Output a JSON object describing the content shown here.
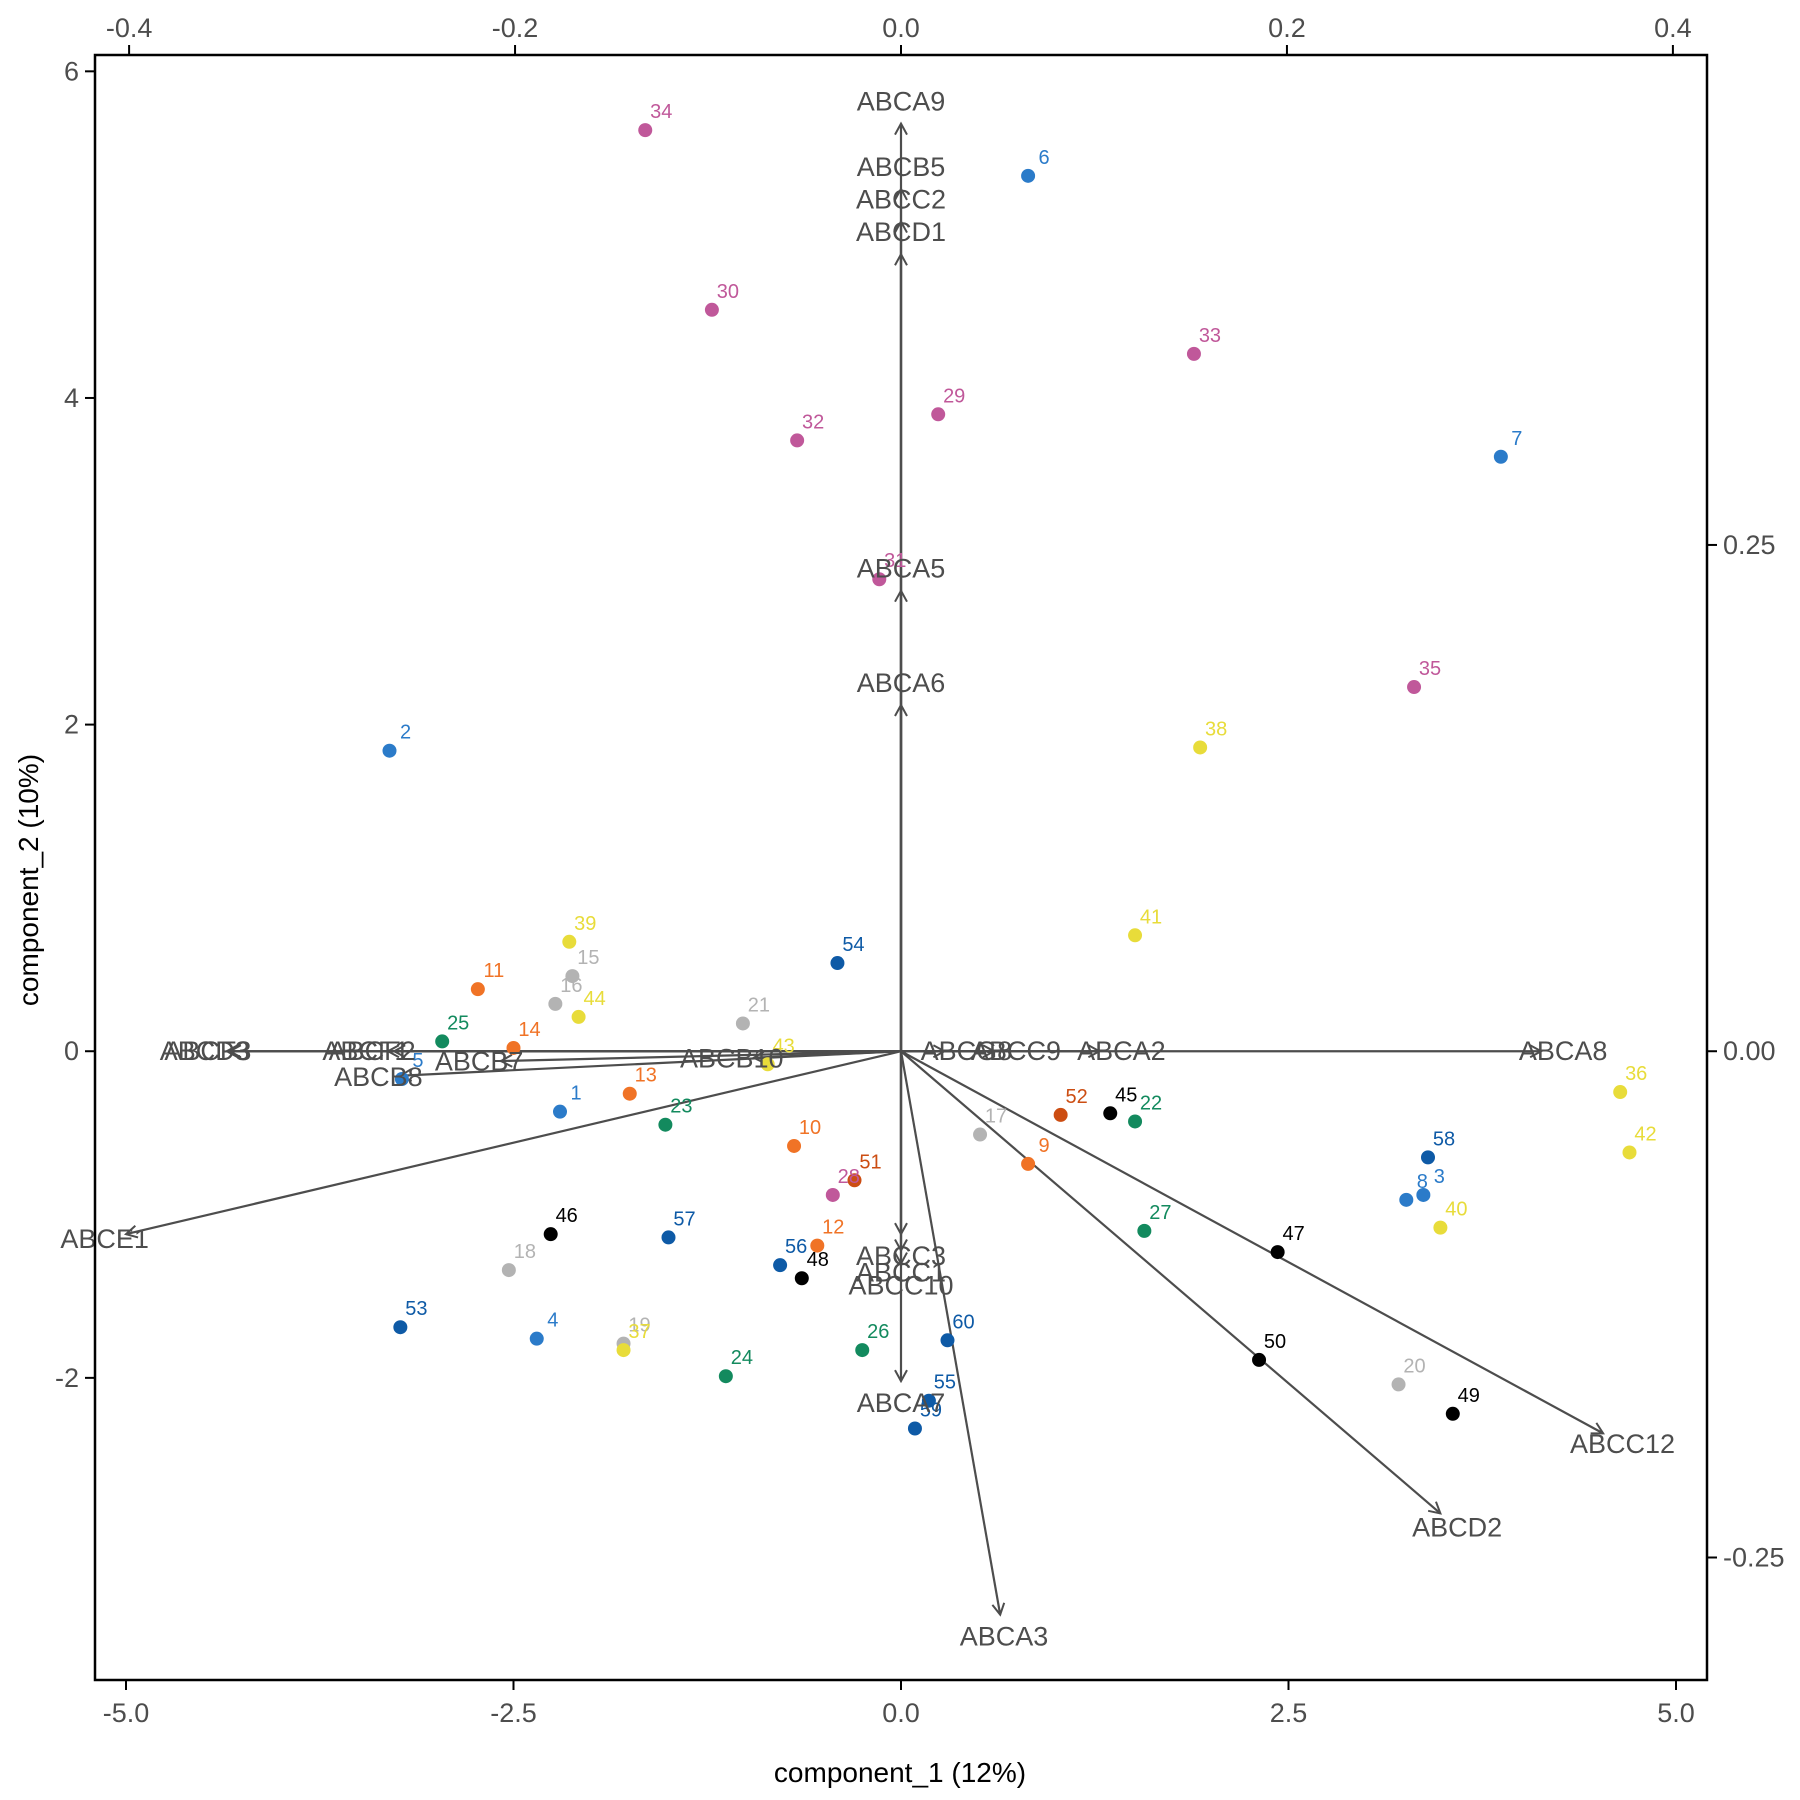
{
  "chart_data": {
    "type": "scatter",
    "subtype": "biplot",
    "xlabel": "component_1   (12%)",
    "ylabel": "component_2   (10%)",
    "xlim": [
      -5.2,
      5.2
    ],
    "ylim": [
      -3.85,
      6.1
    ],
    "x_ticks": [
      -5.0,
      -2.5,
      0.0,
      2.5,
      5.0
    ],
    "x_tick_labels": [
      "-5.0",
      "-2.5",
      "0.0",
      "2.5",
      "5.0"
    ],
    "y_ticks": [
      -2,
      0,
      2,
      4,
      6
    ],
    "y_tick_labels": [
      "-2",
      "0",
      "2",
      "4",
      "6"
    ],
    "top_ticks": [
      -0.4,
      -0.2,
      0.0,
      0.2,
      0.4
    ],
    "top_tick_labels": [
      "-0.4",
      "-0.2",
      "0.0",
      "0.2",
      "0.4"
    ],
    "right_ticks": [
      -0.25,
      0.0,
      0.25
    ],
    "right_tick_labels": [
      "-0.25",
      "0.00",
      "0.25"
    ],
    "grid": false,
    "legend": "none",
    "colors": {
      "axis": "#000000",
      "arrow": "#4d4d4d",
      "vector_label": "#4d4d4d",
      "blue": "#2b7bc9",
      "dark_blue": "#0e5aa6",
      "magenta": "#c0589a",
      "yellow": "#e8dc3a",
      "orange": "#f07326",
      "dark_orange": "#cc4d12",
      "green": "#138a5e",
      "gray": "#b3b3b3",
      "black": "#000000"
    },
    "points": [
      {
        "label": "1",
        "x": -2.2,
        "y": -0.37,
        "color": "#2b7bc9"
      },
      {
        "label": "2",
        "x": -3.3,
        "y": 1.84,
        "color": "#2b7bc9"
      },
      {
        "label": "3",
        "x": 3.37,
        "y": -0.88,
        "color": "#2b7bc9"
      },
      {
        "label": "4",
        "x": -2.35,
        "y": -1.76,
        "color": "#2b7bc9"
      },
      {
        "label": "5",
        "x": -3.22,
        "y": -0.17,
        "color": "#2b7bc9"
      },
      {
        "label": "6",
        "x": 0.82,
        "y": 5.36,
        "color": "#2b7bc9"
      },
      {
        "label": "7",
        "x": 3.87,
        "y": 3.64,
        "color": "#2b7bc9"
      },
      {
        "label": "8",
        "x": 3.26,
        "y": -0.91,
        "color": "#2b7bc9"
      },
      {
        "label": "9",
        "x": 0.82,
        "y": -0.69,
        "color": "#f07326"
      },
      {
        "label": "10",
        "x": -0.69,
        "y": -0.58,
        "color": "#f07326"
      },
      {
        "label": "11",
        "x": -2.73,
        "y": 0.38,
        "color": "#f07326"
      },
      {
        "label": "12",
        "x": -0.54,
        "y": -1.19,
        "color": "#f07326"
      },
      {
        "label": "13",
        "x": -1.75,
        "y": -0.26,
        "color": "#f07326"
      },
      {
        "label": "14",
        "x": -2.5,
        "y": 0.02,
        "color": "#f07326"
      },
      {
        "label": "15",
        "x": -2.12,
        "y": 0.46,
        "color": "#b3b3b3"
      },
      {
        "label": "16",
        "x": -2.23,
        "y": 0.29,
        "color": "#b3b3b3"
      },
      {
        "label": "17",
        "x": 0.51,
        "y": -0.51,
        "color": "#b3b3b3"
      },
      {
        "label": "18",
        "x": -2.53,
        "y": -1.34,
        "color": "#b3b3b3"
      },
      {
        "label": "19",
        "x": -1.79,
        "y": -1.79,
        "color": "#b3b3b3"
      },
      {
        "label": "20",
        "x": 3.21,
        "y": -2.04,
        "color": "#b3b3b3"
      },
      {
        "label": "21",
        "x": -1.02,
        "y": 0.17,
        "color": "#b3b3b3"
      },
      {
        "label": "22",
        "x": 1.51,
        "y": -0.43,
        "color": "#138a5e"
      },
      {
        "label": "23",
        "x": -1.52,
        "y": -0.45,
        "color": "#138a5e"
      },
      {
        "label": "24",
        "x": -1.13,
        "y": -1.99,
        "color": "#138a5e"
      },
      {
        "label": "25",
        "x": -2.96,
        "y": 0.06,
        "color": "#138a5e"
      },
      {
        "label": "26",
        "x": -0.25,
        "y": -1.83,
        "color": "#138a5e"
      },
      {
        "label": "27",
        "x": 1.57,
        "y": -1.1,
        "color": "#138a5e"
      },
      {
        "label": "28",
        "x": -0.44,
        "y": -0.88,
        "color": "#c0589a"
      },
      {
        "label": "29",
        "x": 0.24,
        "y": 3.9,
        "color": "#c0589a"
      },
      {
        "label": "30",
        "x": -1.22,
        "y": 4.54,
        "color": "#c0589a"
      },
      {
        "label": "31",
        "x": -0.14,
        "y": 2.89,
        "color": "#c0589a"
      },
      {
        "label": "32",
        "x": -0.67,
        "y": 3.74,
        "color": "#c0589a"
      },
      {
        "label": "33",
        "x": 1.89,
        "y": 4.27,
        "color": "#c0589a"
      },
      {
        "label": "34",
        "x": -1.65,
        "y": 5.64,
        "color": "#c0589a"
      },
      {
        "label": "35",
        "x": 3.31,
        "y": 2.23,
        "color": "#c0589a"
      },
      {
        "label": "36",
        "x": 4.64,
        "y": -0.25,
        "color": "#e8dc3a"
      },
      {
        "label": "37",
        "x": -1.79,
        "y": -1.83,
        "color": "#e8dc3a"
      },
      {
        "label": "38",
        "x": 1.93,
        "y": 1.86,
        "color": "#e8dc3a"
      },
      {
        "label": "39",
        "x": -2.14,
        "y": 0.67,
        "color": "#e8dc3a"
      },
      {
        "label": "40",
        "x": 3.48,
        "y": -1.08,
        "color": "#e8dc3a"
      },
      {
        "label": "41",
        "x": 1.51,
        "y": 0.71,
        "color": "#e8dc3a"
      },
      {
        "label": "42",
        "x": 4.7,
        "y": -0.62,
        "color": "#e8dc3a"
      },
      {
        "label": "43",
        "x": -0.86,
        "y": -0.08,
        "color": "#e8dc3a"
      },
      {
        "label": "44",
        "x": -2.08,
        "y": 0.21,
        "color": "#e8dc3a"
      },
      {
        "label": "45",
        "x": 1.35,
        "y": -0.38,
        "color": "#000000"
      },
      {
        "label": "46",
        "x": -2.26,
        "y": -1.12,
        "color": "#000000"
      },
      {
        "label": "47",
        "x": 2.43,
        "y": -1.23,
        "color": "#000000"
      },
      {
        "label": "48",
        "x": -0.64,
        "y": -1.39,
        "color": "#000000"
      },
      {
        "label": "49",
        "x": 3.56,
        "y": -2.22,
        "color": "#000000"
      },
      {
        "label": "50",
        "x": 2.31,
        "y": -1.89,
        "color": "#000000"
      },
      {
        "label": "51",
        "x": -0.3,
        "y": -0.79,
        "color": "#cc4d12"
      },
      {
        "label": "52",
        "x": 1.03,
        "y": -0.39,
        "color": "#cc4d12"
      },
      {
        "label": "53",
        "x": -3.23,
        "y": -1.69,
        "color": "#0e5aa6"
      },
      {
        "label": "54",
        "x": -0.41,
        "y": 0.54,
        "color": "#0e5aa6"
      },
      {
        "label": "55",
        "x": 0.18,
        "y": -2.14,
        "color": "#0e5aa6"
      },
      {
        "label": "56",
        "x": -0.78,
        "y": -1.31,
        "color": "#0e5aa6"
      },
      {
        "label": "57",
        "x": -1.5,
        "y": -1.14,
        "color": "#0e5aa6"
      },
      {
        "label": "58",
        "x": 3.4,
        "y": -0.65,
        "color": "#0e5aa6"
      },
      {
        "label": "59",
        "x": 0.09,
        "y": -2.31,
        "color": "#0e5aa6"
      },
      {
        "label": "60",
        "x": 0.3,
        "y": -1.77,
        "color": "#0e5aa6"
      }
    ],
    "vectors": [
      {
        "label": "ABCA9",
        "x": 0.0,
        "y": 5.68
      },
      {
        "label": "ABCB5",
        "x": 0.0,
        "y": 5.28
      },
      {
        "label": "ABCC2",
        "x": 0.0,
        "y": 5.08
      },
      {
        "label": "ABCD1",
        "x": 0.0,
        "y": 4.88
      },
      {
        "label": "ABCA5",
        "x": 0.0,
        "y": 2.82
      },
      {
        "label": "ABCA6",
        "x": 0.0,
        "y": 2.12
      },
      {
        "label": "ABCF3",
        "x": -4.33,
        "y": 0.0
      },
      {
        "label": "ABCD3",
        "x": -4.35,
        "y": 0.0
      },
      {
        "label": "ABCF2",
        "x": -3.27,
        "y": 0.0
      },
      {
        "label": "ABCF1",
        "x": -3.31,
        "y": 0.0
      },
      {
        "label": "ABCB8",
        "x": -3.23,
        "y": -0.15
      },
      {
        "label": "ABCB7",
        "x": -2.58,
        "y": -0.06
      },
      {
        "label": "ABCB10",
        "x": -0.95,
        "y": -0.04
      },
      {
        "label": "ABCG8",
        "x": 0.28,
        "y": 0.0
      },
      {
        "label": "ABCC9",
        "x": 0.6,
        "y": 0.0
      },
      {
        "label": "ABCA2",
        "x": 1.28,
        "y": 0.0
      },
      {
        "label": "ABCA8",
        "x": 4.13,
        "y": 0.0
      },
      {
        "label": "ABCE1",
        "x": -5.0,
        "y": -1.12
      },
      {
        "label": "ABCC3",
        "x": 0.0,
        "y": -1.12
      },
      {
        "label": "ABCC1",
        "x": 0.0,
        "y": -1.22
      },
      {
        "label": "ABCC10",
        "x": 0.0,
        "y": -1.3
      },
      {
        "label": "ABCA7",
        "x": 0.0,
        "y": -2.02
      },
      {
        "label": "ABCA3",
        "x": 0.64,
        "y": -3.45
      },
      {
        "label": "ABCD2",
        "x": 3.48,
        "y": -2.83
      },
      {
        "label": "ABCC12",
        "x": 4.53,
        "y": -2.34
      }
    ]
  }
}
